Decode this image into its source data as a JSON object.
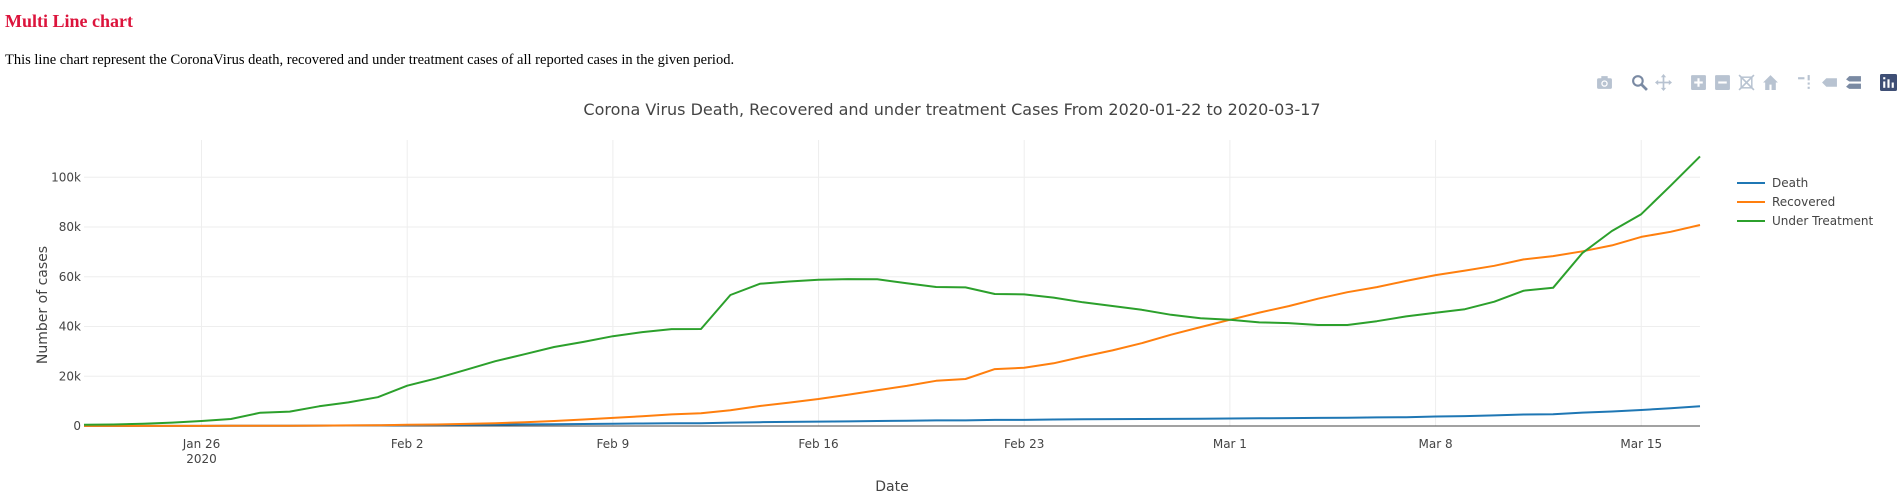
{
  "page": {
    "heading": "Multi Line chart",
    "description": "This line chart represent the CoronaVirus death, recovered and under treatment cases of all reported cases in the given period."
  },
  "modebar": {
    "icons": [
      "camera-icon",
      "zoom-icon",
      "pan-icon",
      "zoom-in-icon",
      "zoom-out-icon",
      "autoscale-icon",
      "reset-axes-icon",
      "spike-lines-icon",
      "hover-closest-icon",
      "hover-compare-icon",
      "plotly-logo-icon"
    ],
    "icon_color": "#b8c3d1",
    "active_color": "#7a8aa3",
    "logo_color": "#3f4f75"
  },
  "chart_data": {
    "type": "line",
    "title": "Corona Virus Death, Recovered and under treatment Cases From 2020-01-22 to 2020-03-17",
    "xlabel": "Date",
    "ylabel": "Number of cases",
    "x_range": [
      "2020-01-22",
      "2020-03-17"
    ],
    "ylim": [
      0,
      115000
    ],
    "x_ticks": [
      {
        "date": "2020-01-26",
        "label": "Jan 26",
        "sublabel": "2020"
      },
      {
        "date": "2020-02-02",
        "label": "Feb 2",
        "sublabel": ""
      },
      {
        "date": "2020-02-09",
        "label": "Feb 9",
        "sublabel": ""
      },
      {
        "date": "2020-02-16",
        "label": "Feb 16",
        "sublabel": ""
      },
      {
        "date": "2020-02-23",
        "label": "Feb 23",
        "sublabel": ""
      },
      {
        "date": "2020-03-01",
        "label": "Mar 1",
        "sublabel": ""
      },
      {
        "date": "2020-03-08",
        "label": "Mar 8",
        "sublabel": ""
      },
      {
        "date": "2020-03-15",
        "label": "Mar 15",
        "sublabel": ""
      }
    ],
    "y_ticks": [
      {
        "value": 0,
        "label": "0"
      },
      {
        "value": 20000,
        "label": "20k"
      },
      {
        "value": 40000,
        "label": "40k"
      },
      {
        "value": 60000,
        "label": "60k"
      },
      {
        "value": 80000,
        "label": "80k"
      },
      {
        "value": 100000,
        "label": "100k"
      }
    ],
    "grid": true,
    "legend_position": "top-right",
    "x": [
      "2020-01-22",
      "2020-01-23",
      "2020-01-24",
      "2020-01-25",
      "2020-01-26",
      "2020-01-27",
      "2020-01-28",
      "2020-01-29",
      "2020-01-30",
      "2020-01-31",
      "2020-02-01",
      "2020-02-02",
      "2020-02-03",
      "2020-02-04",
      "2020-02-05",
      "2020-02-06",
      "2020-02-07",
      "2020-02-08",
      "2020-02-09",
      "2020-02-10",
      "2020-02-11",
      "2020-02-12",
      "2020-02-13",
      "2020-02-14",
      "2020-02-15",
      "2020-02-16",
      "2020-02-17",
      "2020-02-18",
      "2020-02-19",
      "2020-02-20",
      "2020-02-21",
      "2020-02-22",
      "2020-02-23",
      "2020-02-24",
      "2020-02-25",
      "2020-02-26",
      "2020-02-27",
      "2020-02-28",
      "2020-02-29",
      "2020-03-01",
      "2020-03-02",
      "2020-03-03",
      "2020-03-04",
      "2020-03-05",
      "2020-03-06",
      "2020-03-07",
      "2020-03-08",
      "2020-03-09",
      "2020-03-10",
      "2020-03-11",
      "2020-03-12",
      "2020-03-13",
      "2020-03-14",
      "2020-03-15",
      "2020-03-16",
      "2020-03-17"
    ],
    "series": [
      {
        "name": "Death",
        "color": "#1f77b4",
        "values": [
          17,
          18,
          26,
          42,
          56,
          82,
          131,
          133,
          171,
          213,
          259,
          362,
          426,
          492,
          564,
          634,
          719,
          806,
          906,
          1013,
          1113,
          1118,
          1371,
          1523,
          1666,
          1770,
          1868,
          2007,
          2122,
          2247,
          2251,
          2458,
          2469,
          2629,
          2708,
          2770,
          2814,
          2872,
          2941,
          2996,
          3085,
          3160,
          3254,
          3348,
          3460,
          3558,
          3802,
          3988,
          4262,
          4615,
          4720,
          5404,
          5819,
          6440,
          7126,
          7905
        ]
      },
      {
        "name": "Recovered",
        "color": "#ff7f0e",
        "values": [
          28,
          30,
          36,
          39,
          52,
          61,
          107,
          126,
          143,
          222,
          284,
          472,
          623,
          852,
          1124,
          1487,
          2011,
          2616,
          3244,
          3946,
          4683,
          5150,
          6295,
          8058,
          9395,
          10865,
          12583,
          14352,
          16121,
          18177,
          18890,
          22886,
          23394,
          25227,
          27905,
          30384,
          33277,
          36711,
          39782,
          42716,
          45602,
          48228,
          51170,
          53796,
          55865,
          58358,
          60694,
          62494,
          64404,
          67003,
          68324,
          70251,
          72624,
          76034,
          78088,
          80840
        ]
      },
      {
        "name": "Under Treatment",
        "color": "#2ca02c",
        "values": [
          510,
          606,
          879,
          1353,
          2010,
          2795,
          5333,
          5809,
          7928,
          9475,
          11563,
          16200,
          19185,
          22612,
          26044,
          28854,
          31776,
          33821,
          36094,
          37766,
          38969,
          39001,
          52694,
          57190,
          58120,
          58798,
          59073,
          58993,
          57410,
          55885,
          55719,
          53092,
          52911,
          51628,
          49741,
          48247,
          46732,
          44700,
          43350,
          42698,
          41666,
          41388,
          40625,
          40609,
          42125,
          44082,
          45577,
          46975,
          49987,
          54399,
          55555,
          69587,
          78401,
          85163,
          96606,
          108420
        ]
      }
    ]
  }
}
